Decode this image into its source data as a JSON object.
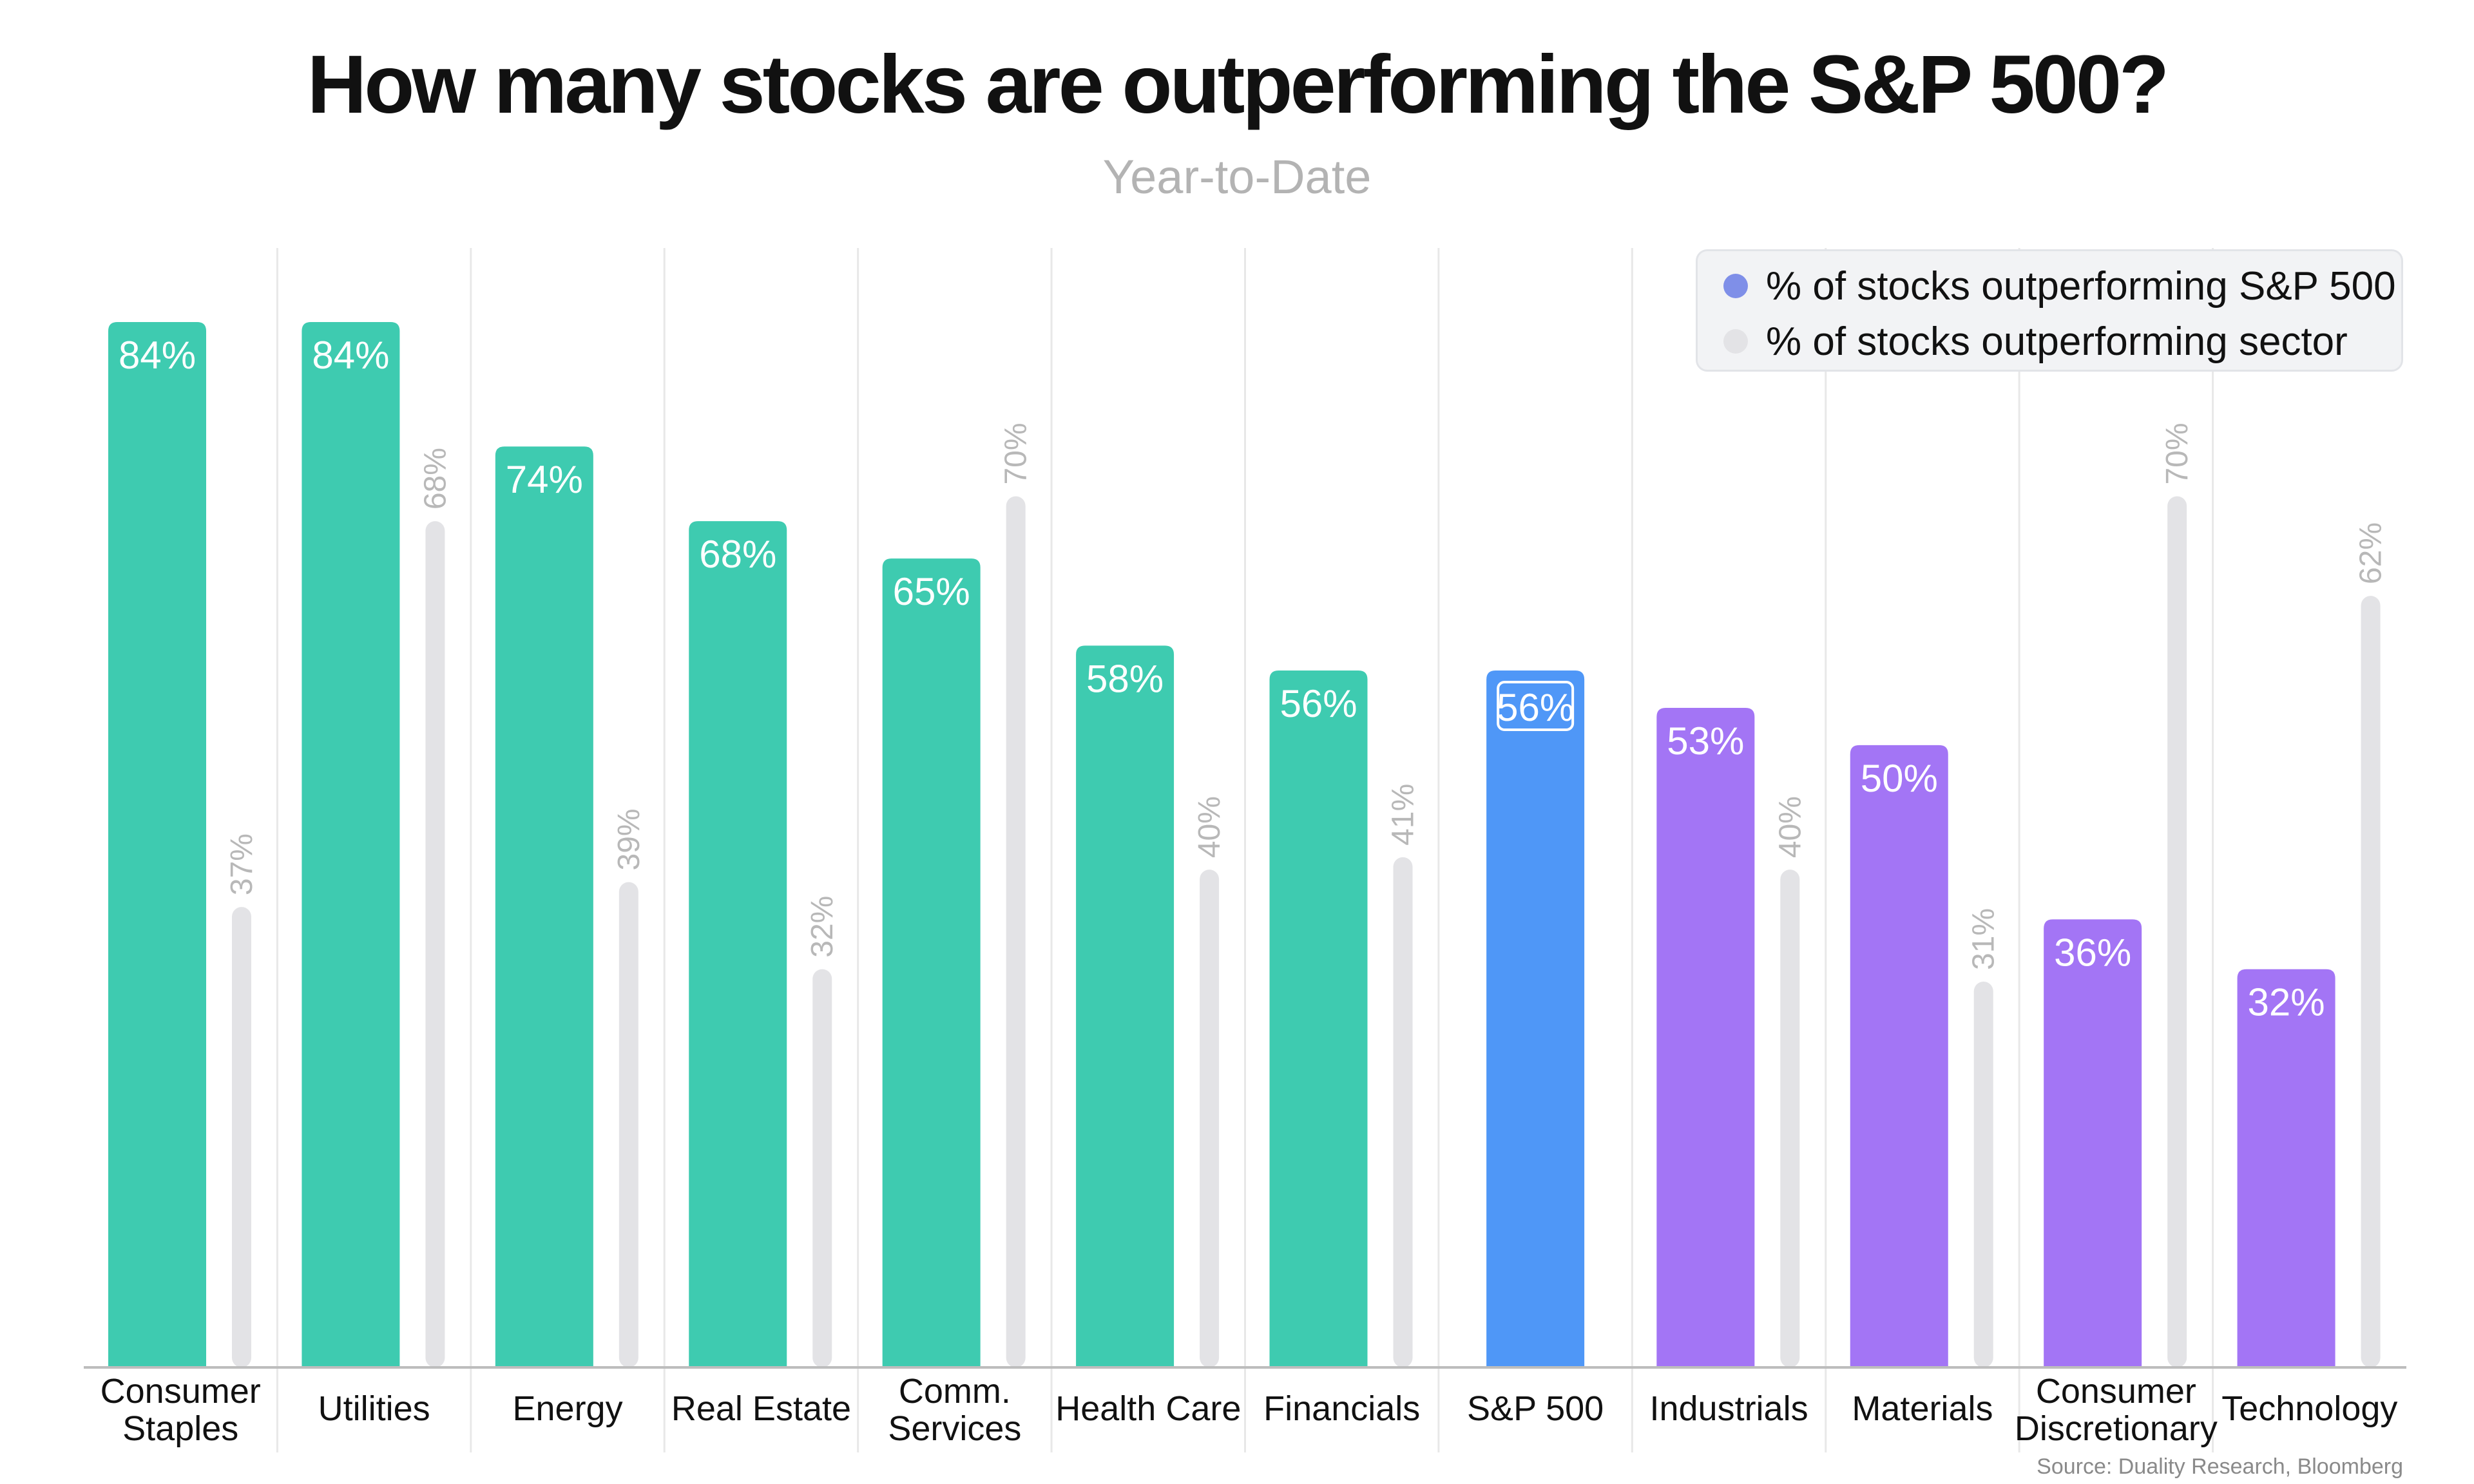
{
  "colors": {
    "teal": "#3ecbb0",
    "blue": "#4f97f7",
    "purple": "#a375f5",
    "sector_bar": "#e3e3e6",
    "sector_label": "#b8b8b8",
    "legend_dot_primary": "#7f8fe8",
    "legend_dot_secondary": "#e3e3e6",
    "grid": "#e8e8e8",
    "axis": "#bdbdbd"
  },
  "legend": {
    "primary": "% of stocks outperforming S&P 500",
    "secondary": "% of stocks outperforming sector"
  },
  "source": "Source: Duality Research, Bloomberg",
  "chart_data": {
    "type": "bar",
    "title": "How many stocks are outperforming the S&P 500?",
    "subtitle": "Year-to-Date",
    "categories": [
      [
        "Consumer",
        "Staples"
      ],
      [
        "Utilities"
      ],
      [
        "Energy"
      ],
      [
        "Real Estate"
      ],
      [
        "Comm.",
        "Services"
      ],
      [
        "Health Care"
      ],
      [
        "Financials"
      ],
      [
        "S&P 500"
      ],
      [
        "Industrials"
      ],
      [
        "Materials"
      ],
      [
        "Consumer",
        "Discretionary"
      ],
      [
        "Technology"
      ]
    ],
    "series": [
      {
        "name": "% of stocks outperforming S&P 500",
        "values": [
          84,
          84,
          74,
          68,
          65,
          58,
          56,
          56,
          53,
          50,
          36,
          32
        ],
        "labels": [
          "84%",
          "84%",
          "74%",
          "68%",
          "65%",
          "58%",
          "56%",
          "56%",
          "53%",
          "50%",
          "36%",
          "32%"
        ],
        "colors": [
          "teal",
          "teal",
          "teal",
          "teal",
          "teal",
          "teal",
          "teal",
          "blue",
          "purple",
          "purple",
          "purple",
          "purple"
        ]
      },
      {
        "name": "% of stocks outperforming sector",
        "values": [
          37,
          68,
          39,
          32,
          70,
          40,
          41,
          null,
          40,
          31,
          70,
          62
        ],
        "labels": [
          "37%",
          "68%",
          "39%",
          "32%",
          "70%",
          "40%",
          "41%",
          "",
          "40%",
          "31%",
          "70%",
          "62%"
        ]
      }
    ],
    "ylim": [
      0,
      100
    ],
    "grid": true,
    "legend_position": "top-right"
  }
}
